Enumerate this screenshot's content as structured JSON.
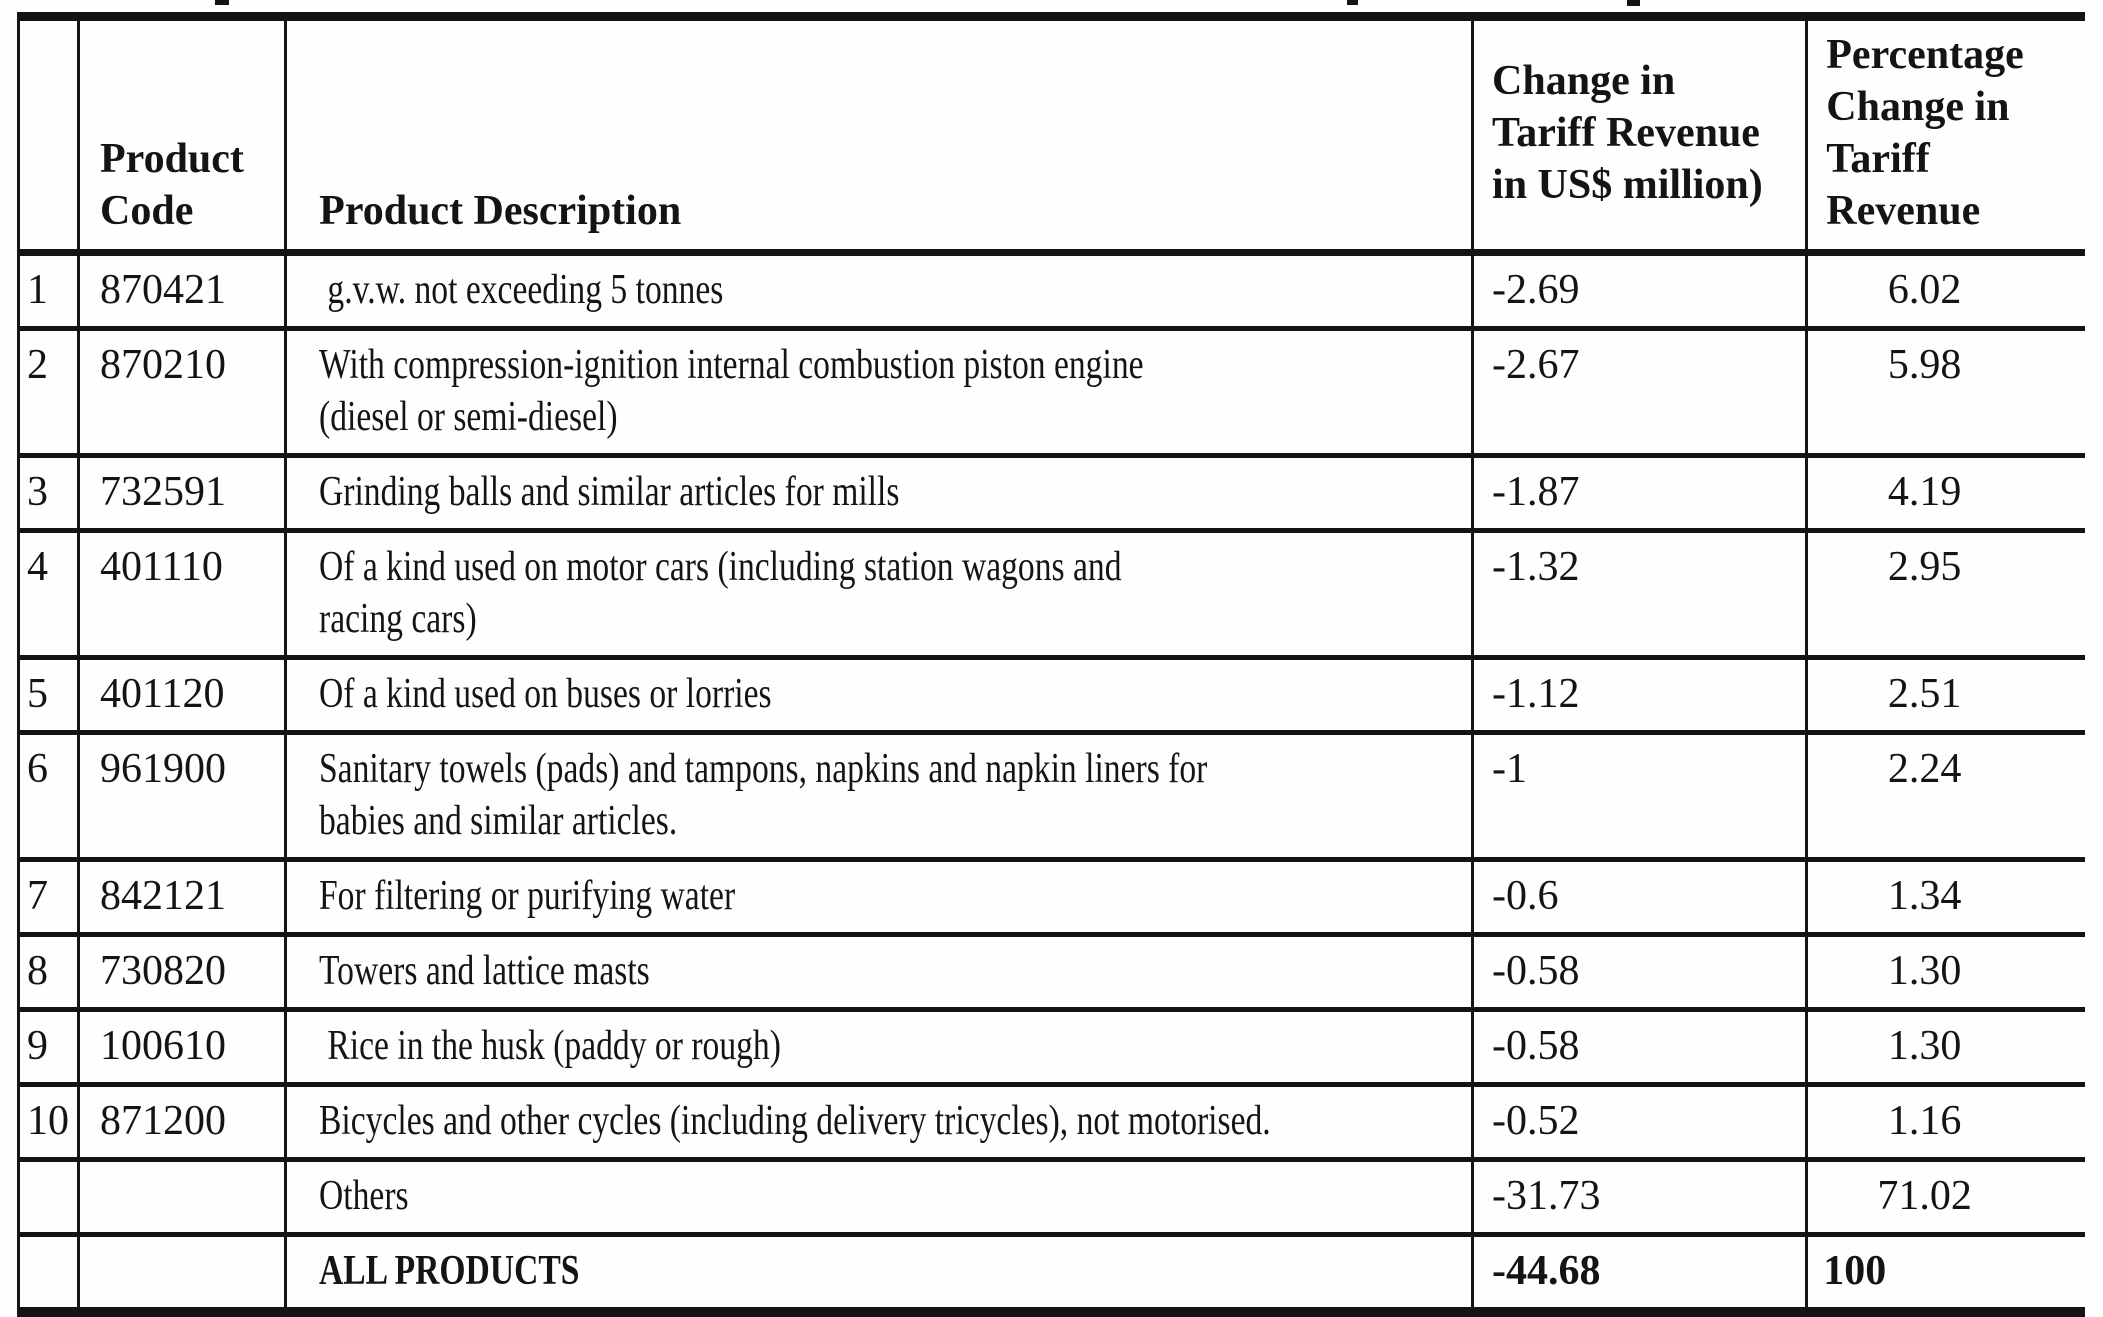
{
  "page": {
    "background_color": "#fefefe",
    "ink_color": "#141414"
  },
  "table": {
    "header": {
      "row_number": "",
      "product_code": "Product\nCode",
      "product_description": "Product Description",
      "change": "Change in\nTariff Revenue\nin US$ million)",
      "percent": "Percentage\nChange in\nTariff Revenue"
    },
    "rows": [
      {
        "num": "1",
        "code": "870421",
        "description": " g.v.w. not exceeding 5 tonnes",
        "change": "-2.69",
        "percent": "6.02"
      },
      {
        "num": "2",
        "code": "870210",
        "description": "With compression-ignition internal combustion piston engine\n(diesel or semi-diesel)",
        "change": "-2.67",
        "percent": "5.98"
      },
      {
        "num": "3",
        "code": "732591",
        "description": "Grinding balls and similar articles for mills",
        "change": "-1.87",
        "percent": "4.19"
      },
      {
        "num": "4",
        "code": "401110",
        "description": "Of a kind used on motor cars (including station wagons and\nracing cars)",
        "change": "-1.32",
        "percent": "2.95"
      },
      {
        "num": "5",
        "code": "401120",
        "description": "Of a kind used on buses or lorries",
        "change": "-1.12",
        "percent": "2.51"
      },
      {
        "num": "6",
        "code": "961900",
        "description": "Sanitary towels (pads) and tampons, napkins and napkin liners for\nbabies and similar articles.",
        "change": "-1",
        "percent": "2.24"
      },
      {
        "num": "7",
        "code": "842121",
        "description": "For filtering or purifying water",
        "change": "-0.6",
        "percent": "1.34"
      },
      {
        "num": "8",
        "code": "730820",
        "description": "Towers and lattice masts",
        "change": "-0.58",
        "percent": "1.30"
      },
      {
        "num": "9",
        "code": "100610",
        "description": " Rice in the husk (paddy or rough)",
        "change": "-0.58",
        "percent": "1.30"
      },
      {
        "num": "10",
        "code": "871200",
        "description": "Bicycles and other cycles (including delivery tricycles), not motorised.",
        "change": "-0.52",
        "percent": "1.16"
      }
    ],
    "summary_rows": [
      {
        "num": "",
        "code": "",
        "description": "Others",
        "change": "-31.73",
        "percent": "71.02"
      },
      {
        "num": "",
        "code": "",
        "description": "ALL PRODUCTS",
        "change": "-44.68",
        "percent": "100"
      }
    ]
  }
}
